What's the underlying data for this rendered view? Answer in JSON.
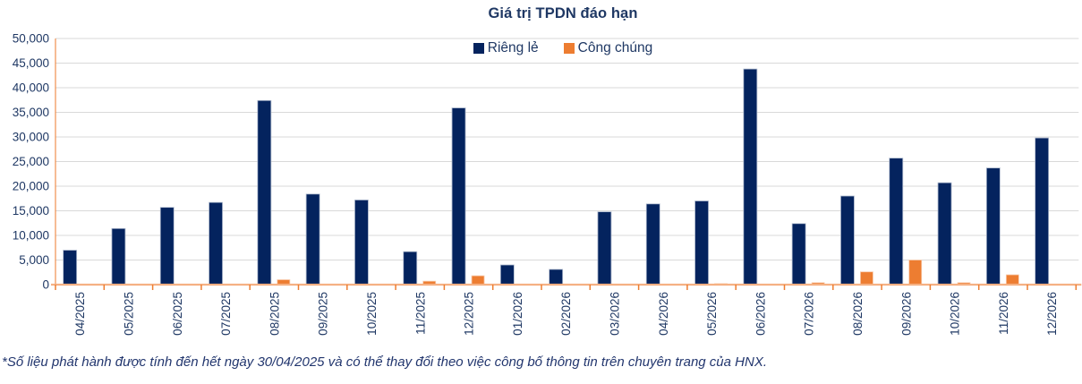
{
  "title": "Giá trị TPDN đáo hạn",
  "footnote": "*Số liệu phát hành được tính đến hết ngày 30/04/2025 và có thể thay đổi theo việc công bố thông tin trên chuyên trang của HNX.",
  "colors": {
    "navy": "#04235E",
    "orange": "#ED7D31",
    "grid": "#D9D9D9",
    "axis_line_light": "#F5B183",
    "axis_tick_orange": "#ED7D31",
    "text_navy": "#1F3864",
    "navy_bar_edge": "#AFBACE",
    "orange_bar_edge": "#F8CBAD"
  },
  "chart_data": {
    "type": "bar",
    "title": "Giá trị TPDN đáo hạn",
    "categories": [
      "04/2025",
      "05/2025",
      "06/2025",
      "07/2025",
      "08/2025",
      "09/2025",
      "10/2025",
      "11/2025",
      "12/2025",
      "01/2026",
      "02/2026",
      "03/2026",
      "04/2026",
      "05/2026",
      "06/2026",
      "07/2026",
      "08/2026",
      "09/2026",
      "10/2026",
      "11/2026",
      "12/2026"
    ],
    "series": [
      {
        "name": "Riêng lẻ",
        "color": "#04235E",
        "values": [
          7000,
          11400,
          15700,
          16700,
          37400,
          18400,
          17200,
          6700,
          35900,
          4000,
          3100,
          14800,
          16400,
          17000,
          43800,
          12400,
          18000,
          25700,
          20700,
          23700,
          29800
        ]
      },
      {
        "name": "Công chúng",
        "color": "#ED7D31",
        "values": [
          0,
          0,
          0,
          0,
          1000,
          0,
          0,
          700,
          1800,
          0,
          0,
          0,
          0,
          200,
          0,
          400,
          2600,
          5000,
          400,
          2000,
          0
        ]
      }
    ],
    "xlabel": "",
    "ylabel": "",
    "ylim": [
      0,
      50000
    ],
    "ytick_step": 5000,
    "ytick_labels": [
      "0",
      "5,000",
      "10,000",
      "15,000",
      "20,000",
      "25,000",
      "30,000",
      "35,000",
      "40,000",
      "45,000",
      "50,000"
    ],
    "grid": true,
    "legend_position": "top-center-inside",
    "x_label_rotation": 90
  }
}
